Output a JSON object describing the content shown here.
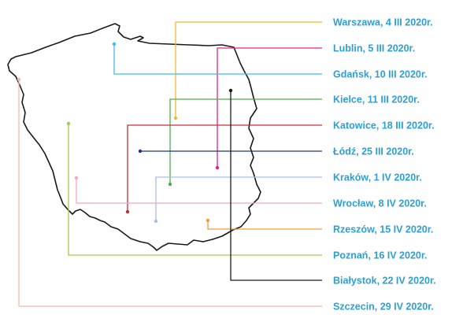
{
  "map": {
    "region": "poland-outline",
    "outline_color": "#1a1a1a",
    "label_color": "#2e9fd3",
    "markers": [
      {
        "label": "Warszawa, 4 III 2020r.",
        "color": "#f2b630"
      },
      {
        "label": "Lublin, 5 III 2020r.",
        "color": "#e8218a"
      },
      {
        "label": "Gdańsk, 10 III 2020r.",
        "color": "#3cbde8"
      },
      {
        "label": "Kielce, 11 III 2020r.",
        "color": "#4cae4c"
      },
      {
        "label": "Katowice, 18 III 2020r.",
        "color": "#cc2b3d"
      },
      {
        "label": "Łódź, 25 III 2020r.",
        "color": "#23357f"
      },
      {
        "label": "Kraków, 1 IV 2020r.",
        "color": "#a9bde3"
      },
      {
        "label": "Wrocław, 8 IV 2020r.",
        "color": "#f2a7c8"
      },
      {
        "label": "Rzeszów, 15 IV 2020r.",
        "color": "#f29a3a"
      },
      {
        "label": "Poznań, 16 IV 2020r.",
        "color": "#9fce4f"
      },
      {
        "label": "Białystok, 22 IV 2020r.",
        "color": "#1a1a1a"
      },
      {
        "label": "Szczecin, 29 IV 2020r.",
        "color": "#f4b8aa"
      }
    ]
  }
}
